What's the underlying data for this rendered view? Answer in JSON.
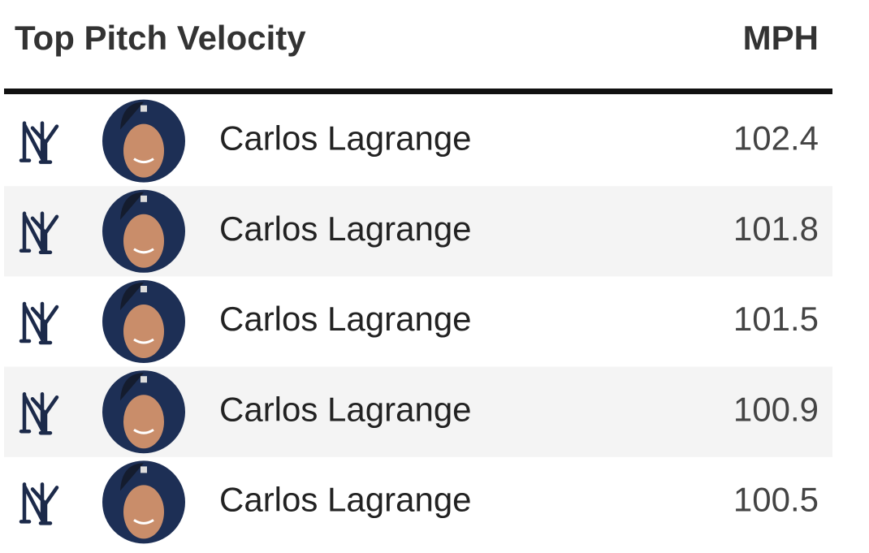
{
  "header": {
    "title": "Top Pitch Velocity",
    "unit": "MPH"
  },
  "rows": [
    {
      "name": "Carlos Lagrange",
      "mph": 102.4
    },
    {
      "name": "Carlos Lagrange",
      "mph": 101.8
    },
    {
      "name": "Carlos Lagrange",
      "mph": 101.5
    },
    {
      "name": "Carlos Lagrange",
      "mph": 100.9
    },
    {
      "name": "Carlos Lagrange",
      "mph": 100.5
    }
  ]
}
